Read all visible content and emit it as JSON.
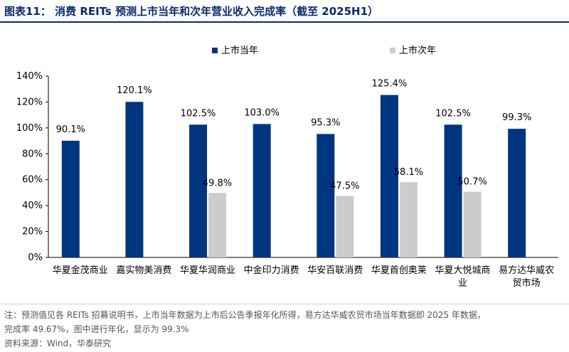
{
  "title": "图表11：  消费 REITs 预测上市当年和次年营业收入完成率（截至 2025H1）",
  "colors": {
    "series1": "#003580",
    "series2": "#cccccc",
    "title": "#0a2a6b"
  },
  "chart_data": {
    "type": "bar",
    "categories": [
      "华夏金茂商业",
      "嘉实物美消费",
      "华夏华润商业",
      "中金印力消费",
      "华安百联消费",
      "华夏首创奥莱",
      "华夏大悦城商业",
      "易方达华威农贸市场"
    ],
    "category_lines": [
      [
        "华夏金茂商业"
      ],
      [
        "嘉实物美消费"
      ],
      [
        "华夏华润商业"
      ],
      [
        "中金印力消费"
      ],
      [
        "华安百联消费"
      ],
      [
        "华夏首创奥莱"
      ],
      [
        "华夏大悦城商",
        "业"
      ],
      [
        "易方达华威农",
        "贸市场"
      ]
    ],
    "series": [
      {
        "name": "上市当年",
        "values": [
          90.1,
          120.1,
          102.5,
          103.0,
          95.3,
          125.4,
          102.5,
          99.3
        ],
        "labels": [
          "90.1%",
          "120.1%",
          "102.5%",
          "103.0%",
          "95.3%",
          "125.4%",
          "102.5%",
          "99.3%"
        ]
      },
      {
        "name": "上市次年",
        "values": [
          null,
          null,
          49.8,
          null,
          47.5,
          58.1,
          50.7,
          null
        ],
        "labels": [
          null,
          null,
          "49.8%",
          null,
          "47.5%",
          "58.1%",
          "50.7%",
          null
        ]
      }
    ],
    "yticks": [
      "0%",
      "20%",
      "40%",
      "60%",
      "80%",
      "100%",
      "120%",
      "140%"
    ],
    "ylim": [
      0,
      140
    ],
    "legend": "top",
    "grid": false
  },
  "notes": {
    "line1": "注：预测值见各 REITs 招募说明书，上市当年数据为上市后公告季报年化所得，易方达华威农贸市场当年数据即 2025 年数据，",
    "line2": "完成率 49.67%，图中进行年化，显示为 99.3%",
    "source": "资料来源：Wind，华泰研究"
  }
}
